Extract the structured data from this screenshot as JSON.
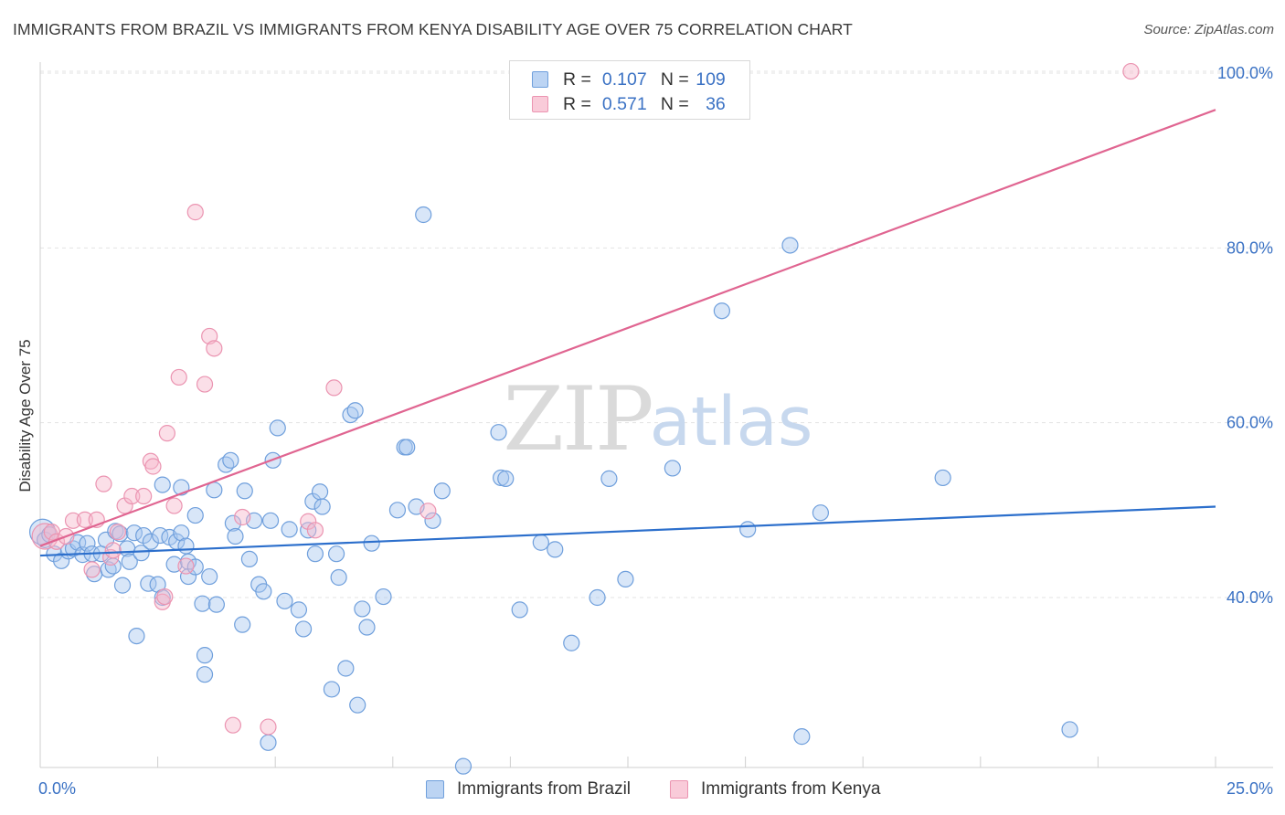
{
  "title": "IMMIGRANTS FROM BRAZIL VS IMMIGRANTS FROM KENYA DISABILITY AGE OVER 75 CORRELATION CHART",
  "source": "Source: ZipAtlas.com",
  "watermark": {
    "zip": "ZIP",
    "atlas": "atlas"
  },
  "legend": {
    "rows": [
      {
        "r_label": "R =",
        "r_value": "0.107",
        "n_label": "N =",
        "n_value": "109"
      },
      {
        "r_label": "R =",
        "r_value": "0.571",
        "n_label": "N =",
        "n_value": "36"
      }
    ]
  },
  "bottom_legend": {
    "brazil": "Immigrants from Brazil",
    "kenya": "Immigrants from Kenya"
  },
  "colors": {
    "brazil_fill": "#a9c8ef",
    "brazil_stroke": "#6f9fdc",
    "brazil_line": "#2c6fcc",
    "kenya_fill": "#f6b8cc",
    "kenya_stroke": "#eb94b1",
    "kenya_line": "#e06591",
    "axis_label": "#3b72c4",
    "grid": "#e3e3e3"
  },
  "chart_data": {
    "type": "scatter",
    "title": "IMMIGRANTS FROM BRAZIL VS IMMIGRANTS FROM KENYA DISABILITY AGE OVER 75 CORRELATION CHART",
    "xlabel": "",
    "ylabel": "Disability Age Over 75",
    "xlim": [
      0,
      25
    ],
    "ylim": [
      20,
      102
    ],
    "x_tick_labels": [
      "0.0%",
      "25.0%"
    ],
    "y_ticks": [
      40,
      60,
      80,
      100
    ],
    "y_tick_labels": [
      "40.0%",
      "60.0%",
      "80.0%",
      "100.0%"
    ],
    "grid": true,
    "series": [
      {
        "name": "Immigrants from Brazil",
        "r": 0.107,
        "n": 109,
        "trend": {
          "x": [
            0,
            25
          ],
          "y": [
            44.8,
            50.4
          ]
        },
        "points": [
          {
            "x": 0.05,
            "y": 47.5,
            "big": true
          },
          {
            "x": 0.1,
            "y": 46.6
          },
          {
            "x": 0.2,
            "y": 47.2
          },
          {
            "x": 0.3,
            "y": 45.0
          },
          {
            "x": 0.45,
            "y": 44.2
          },
          {
            "x": 0.6,
            "y": 45.3
          },
          {
            "x": 0.7,
            "y": 45.6
          },
          {
            "x": 0.8,
            "y": 46.3
          },
          {
            "x": 0.9,
            "y": 44.9
          },
          {
            "x": 1.0,
            "y": 46.2
          },
          {
            "x": 1.1,
            "y": 45.0
          },
          {
            "x": 1.15,
            "y": 42.7
          },
          {
            "x": 1.3,
            "y": 45.0
          },
          {
            "x": 1.4,
            "y": 46.6
          },
          {
            "x": 1.45,
            "y": 43.2
          },
          {
            "x": 1.55,
            "y": 43.6
          },
          {
            "x": 1.6,
            "y": 47.6
          },
          {
            "x": 1.7,
            "y": 47.3
          },
          {
            "x": 1.75,
            "y": 41.4
          },
          {
            "x": 1.85,
            "y": 45.6
          },
          {
            "x": 1.9,
            "y": 44.1
          },
          {
            "x": 2.0,
            "y": 47.4
          },
          {
            "x": 2.05,
            "y": 35.6
          },
          {
            "x": 2.15,
            "y": 45.1
          },
          {
            "x": 2.2,
            "y": 47.1
          },
          {
            "x": 2.3,
            "y": 41.6
          },
          {
            "x": 2.35,
            "y": 46.4
          },
          {
            "x": 2.5,
            "y": 41.5
          },
          {
            "x": 2.55,
            "y": 47.1
          },
          {
            "x": 2.6,
            "y": 40.0
          },
          {
            "x": 2.6,
            "y": 52.9
          },
          {
            "x": 2.75,
            "y": 46.9
          },
          {
            "x": 2.85,
            "y": 43.8
          },
          {
            "x": 2.9,
            "y": 46.4
          },
          {
            "x": 3.0,
            "y": 52.6
          },
          {
            "x": 3.0,
            "y": 47.4
          },
          {
            "x": 3.1,
            "y": 45.9
          },
          {
            "x": 3.15,
            "y": 44.1
          },
          {
            "x": 3.15,
            "y": 42.4
          },
          {
            "x": 3.3,
            "y": 49.4
          },
          {
            "x": 3.3,
            "y": 43.5
          },
          {
            "x": 3.45,
            "y": 39.3
          },
          {
            "x": 3.5,
            "y": 33.4
          },
          {
            "x": 3.5,
            "y": 31.2
          },
          {
            "x": 3.6,
            "y": 42.4
          },
          {
            "x": 3.7,
            "y": 52.3
          },
          {
            "x": 3.75,
            "y": 39.2
          },
          {
            "x": 3.95,
            "y": 55.2
          },
          {
            "x": 4.05,
            "y": 55.7
          },
          {
            "x": 4.1,
            "y": 48.5
          },
          {
            "x": 4.15,
            "y": 47.0
          },
          {
            "x": 4.3,
            "y": 36.9
          },
          {
            "x": 4.35,
            "y": 52.2
          },
          {
            "x": 4.45,
            "y": 44.4
          },
          {
            "x": 4.55,
            "y": 48.8
          },
          {
            "x": 4.65,
            "y": 41.5
          },
          {
            "x": 4.75,
            "y": 40.7
          },
          {
            "x": 4.85,
            "y": 23.4
          },
          {
            "x": 4.9,
            "y": 48.8
          },
          {
            "x": 4.95,
            "y": 55.7
          },
          {
            "x": 5.05,
            "y": 59.4
          },
          {
            "x": 5.2,
            "y": 39.6
          },
          {
            "x": 5.3,
            "y": 47.8
          },
          {
            "x": 5.5,
            "y": 38.6
          },
          {
            "x": 5.6,
            "y": 36.4
          },
          {
            "x": 5.7,
            "y": 47.7
          },
          {
            "x": 5.8,
            "y": 51.0
          },
          {
            "x": 5.85,
            "y": 45.0
          },
          {
            "x": 5.95,
            "y": 52.1
          },
          {
            "x": 6.0,
            "y": 50.4
          },
          {
            "x": 6.2,
            "y": 29.5
          },
          {
            "x": 6.3,
            "y": 45.0
          },
          {
            "x": 6.35,
            "y": 42.3
          },
          {
            "x": 6.5,
            "y": 31.9
          },
          {
            "x": 6.6,
            "y": 60.9
          },
          {
            "x": 6.7,
            "y": 61.4
          },
          {
            "x": 6.75,
            "y": 27.7
          },
          {
            "x": 6.85,
            "y": 38.7
          },
          {
            "x": 6.95,
            "y": 36.6
          },
          {
            "x": 7.05,
            "y": 46.2
          },
          {
            "x": 7.3,
            "y": 40.1
          },
          {
            "x": 7.6,
            "y": 50.0
          },
          {
            "x": 7.75,
            "y": 57.2
          },
          {
            "x": 7.8,
            "y": 57.2
          },
          {
            "x": 8.0,
            "y": 50.4
          },
          {
            "x": 8.15,
            "y": 83.8
          },
          {
            "x": 8.35,
            "y": 48.8
          },
          {
            "x": 8.55,
            "y": 52.2
          },
          {
            "x": 9.0,
            "y": 20.7
          },
          {
            "x": 9.75,
            "y": 58.9
          },
          {
            "x": 9.8,
            "y": 53.7
          },
          {
            "x": 9.9,
            "y": 53.6
          },
          {
            "x": 10.2,
            "y": 38.6
          },
          {
            "x": 10.65,
            "y": 46.3
          },
          {
            "x": 10.95,
            "y": 45.5
          },
          {
            "x": 11.3,
            "y": 34.8
          },
          {
            "x": 11.85,
            "y": 40.0
          },
          {
            "x": 12.1,
            "y": 53.6
          },
          {
            "x": 12.45,
            "y": 42.1
          },
          {
            "x": 13.45,
            "y": 54.8
          },
          {
            "x": 14.5,
            "y": 72.8
          },
          {
            "x": 15.05,
            "y": 47.8
          },
          {
            "x": 15.95,
            "y": 80.3
          },
          {
            "x": 16.2,
            "y": 24.1
          },
          {
            "x": 16.6,
            "y": 49.7
          },
          {
            "x": 19.2,
            "y": 53.7
          },
          {
            "x": 21.9,
            "y": 24.9
          }
        ]
      },
      {
        "name": "Immigrants from Kenya",
        "r": 0.571,
        "n": 36,
        "trend": {
          "x": [
            0,
            25
          ],
          "y": [
            45.9,
            95.8
          ]
        },
        "points": [
          {
            "x": 0.1,
            "y": 47.0,
            "big": true
          },
          {
            "x": 0.25,
            "y": 47.5
          },
          {
            "x": 0.35,
            "y": 46.4
          },
          {
            "x": 0.55,
            "y": 47.0
          },
          {
            "x": 0.7,
            "y": 48.8
          },
          {
            "x": 0.95,
            "y": 48.9
          },
          {
            "x": 1.1,
            "y": 43.2
          },
          {
            "x": 1.2,
            "y": 48.9
          },
          {
            "x": 1.35,
            "y": 53.0
          },
          {
            "x": 1.5,
            "y": 44.6
          },
          {
            "x": 1.55,
            "y": 45.4
          },
          {
            "x": 1.65,
            "y": 47.5
          },
          {
            "x": 1.8,
            "y": 50.5
          },
          {
            "x": 1.95,
            "y": 51.6
          },
          {
            "x": 2.2,
            "y": 51.6
          },
          {
            "x": 2.35,
            "y": 55.6
          },
          {
            "x": 2.4,
            "y": 55.0
          },
          {
            "x": 2.6,
            "y": 39.5
          },
          {
            "x": 2.65,
            "y": 40.1
          },
          {
            "x": 2.7,
            "y": 58.8
          },
          {
            "x": 2.85,
            "y": 50.5
          },
          {
            "x": 2.95,
            "y": 65.2
          },
          {
            "x": 3.1,
            "y": 43.6
          },
          {
            "x": 3.3,
            "y": 84.1
          },
          {
            "x": 3.5,
            "y": 64.4
          },
          {
            "x": 3.6,
            "y": 69.9
          },
          {
            "x": 3.7,
            "y": 68.5
          },
          {
            "x": 4.1,
            "y": 25.4
          },
          {
            "x": 4.3,
            "y": 49.2
          },
          {
            "x": 4.85,
            "y": 25.2
          },
          {
            "x": 5.7,
            "y": 48.7
          },
          {
            "x": 5.85,
            "y": 47.7
          },
          {
            "x": 6.25,
            "y": 64.0
          },
          {
            "x": 8.25,
            "y": 49.9
          },
          {
            "x": 23.2,
            "y": 100.2
          }
        ]
      }
    ]
  }
}
